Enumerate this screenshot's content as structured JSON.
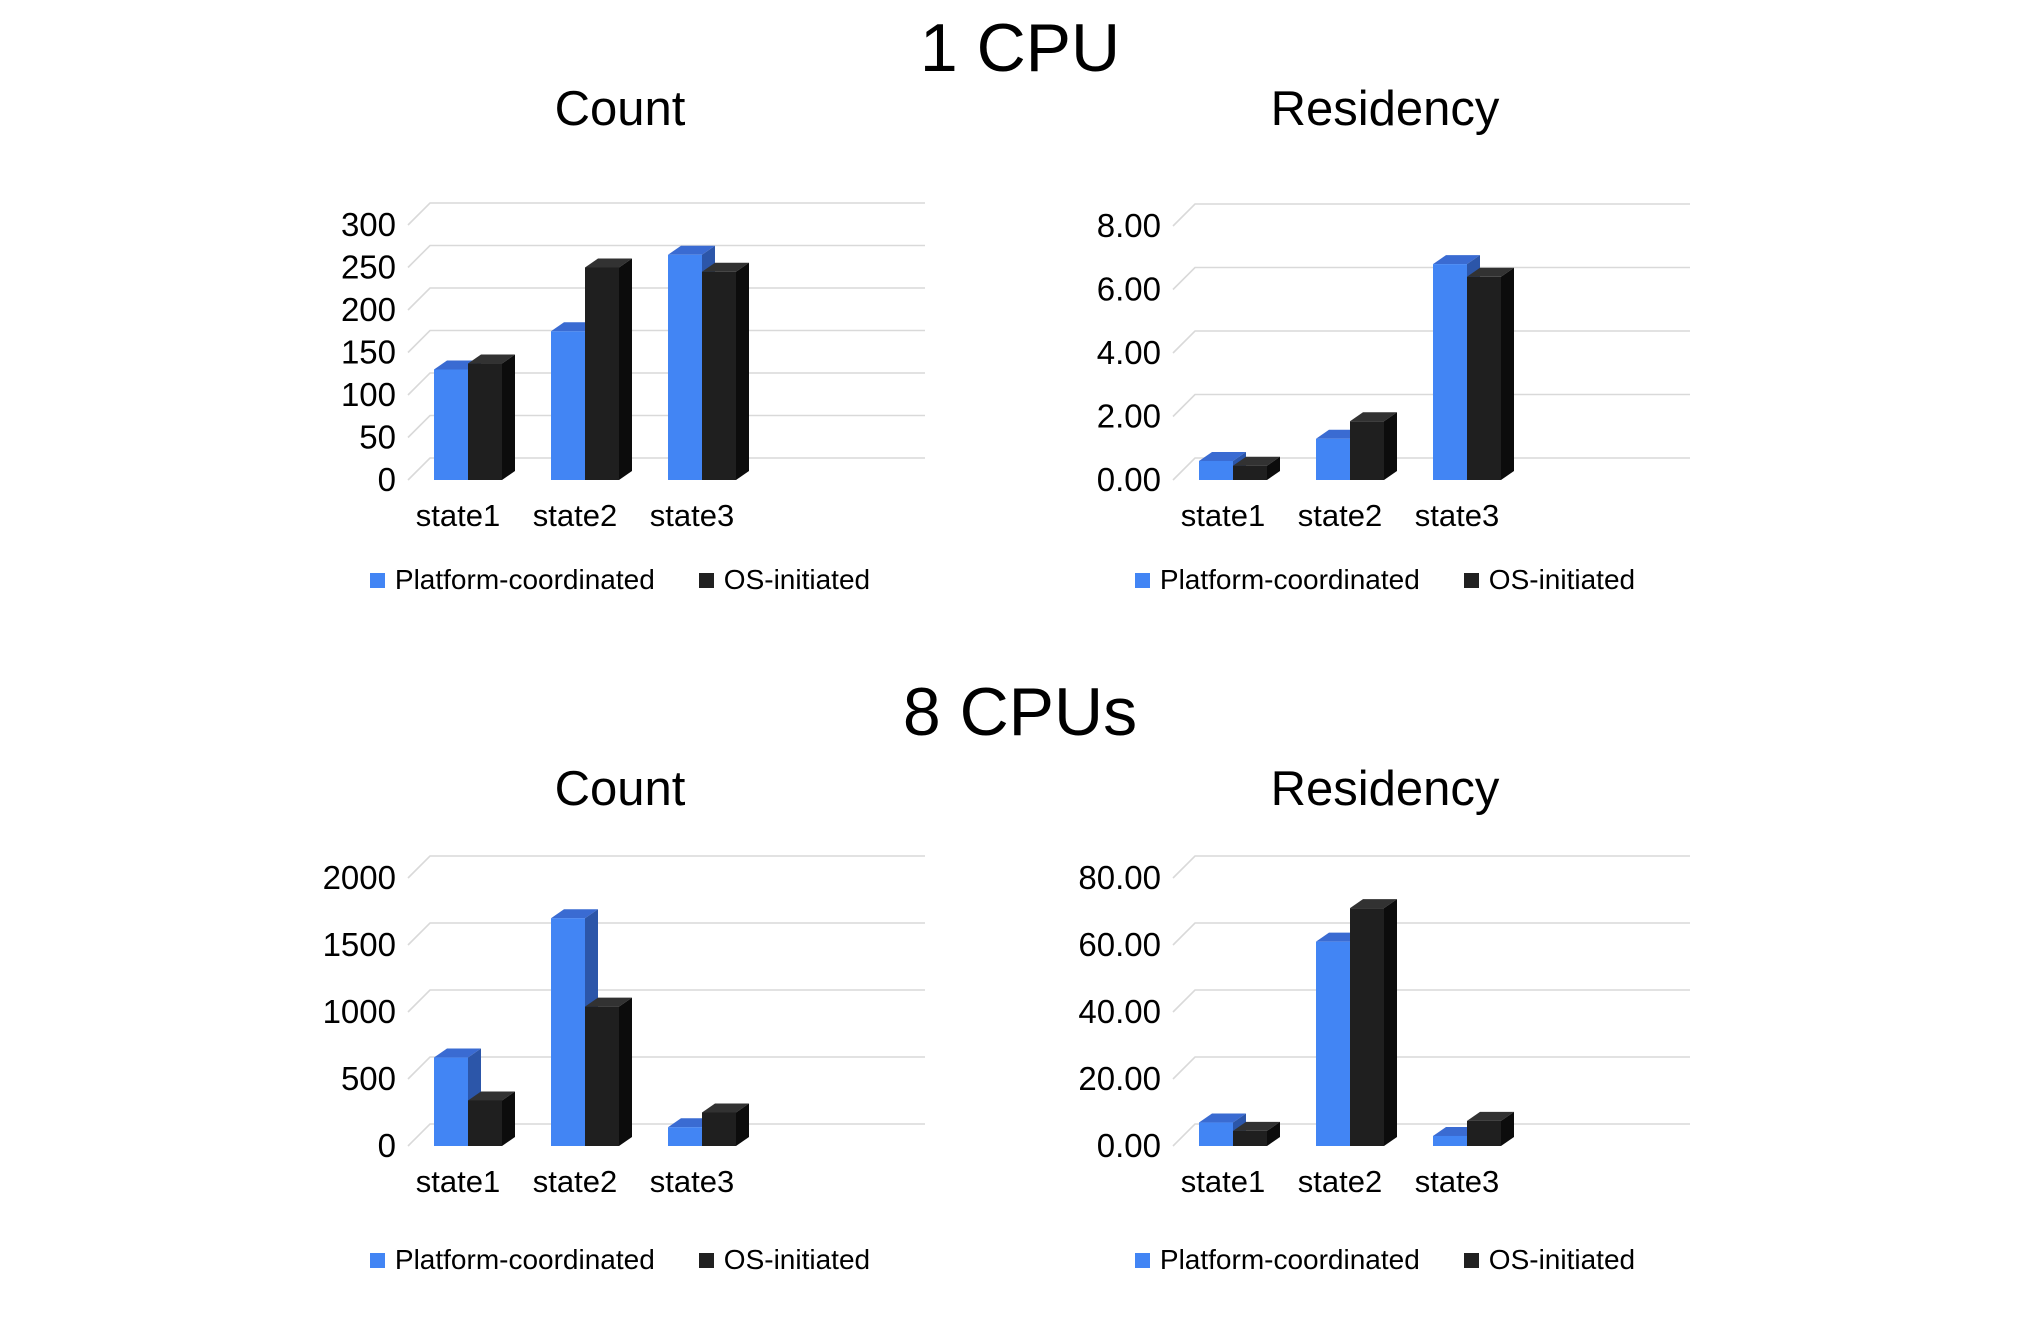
{
  "page_background": "#ffffff",
  "sections": [
    {
      "title": "1 CPU"
    },
    {
      "title": "8 CPUs"
    }
  ],
  "colors": {
    "platform_coordinated": "#4285f4",
    "os_initiated": "#212121",
    "gridline": "#d9d9d9",
    "platform_faces": {
      "front": "#4285f4",
      "top": "#3a6bd2",
      "side": "#2c56a9"
    },
    "os_faces": {
      "front": "#1f1f1f",
      "top": "#323232",
      "side": "#0c0c0c"
    }
  },
  "chart_data": [
    {
      "type": "bar",
      "style": "3d-column",
      "section": "1 CPU",
      "title": "Count",
      "categories": [
        "state1",
        "state2",
        "state3"
      ],
      "series": [
        {
          "name": "Platform-coordinated",
          "color": "#4285f4",
          "values": [
            130,
            175,
            265
          ]
        },
        {
          "name": "OS-initiated",
          "color": "#212121",
          "values": [
            137,
            250,
            245
          ]
        }
      ],
      "ylim": [
        0,
        300
      ],
      "yticks": [
        "0",
        "50",
        "100",
        "150",
        "200",
        "250",
        "300"
      ],
      "grid": true,
      "legend_position": "bottom"
    },
    {
      "type": "bar",
      "style": "3d-column",
      "section": "1 CPU",
      "title": "Residency",
      "categories": [
        "state1",
        "state2",
        "state3"
      ],
      "series": [
        {
          "name": "Platform-coordinated",
          "color": "#4285f4",
          "values": [
            0.6,
            1.3,
            6.8
          ]
        },
        {
          "name": "OS-initiated",
          "color": "#212121",
          "values": [
            0.45,
            1.85,
            6.4
          ]
        }
      ],
      "ylim": [
        0,
        8
      ],
      "yticks": [
        "0.00",
        "2.00",
        "4.00",
        "6.00",
        "8.00"
      ],
      "grid": true,
      "legend_position": "bottom"
    },
    {
      "type": "bar",
      "style": "3d-column",
      "section": "8 CPUs",
      "title": "Count",
      "categories": [
        "state1",
        "state2",
        "state3"
      ],
      "series": [
        {
          "name": "Platform-coordinated",
          "color": "#4285f4",
          "values": [
            660,
            1700,
            140
          ]
        },
        {
          "name": "OS-initiated",
          "color": "#212121",
          "values": [
            340,
            1040,
            250
          ]
        }
      ],
      "ylim": [
        0,
        2000
      ],
      "yticks": [
        "0",
        "500",
        "1000",
        "1500",
        "2000"
      ],
      "grid": true,
      "legend_position": "bottom"
    },
    {
      "type": "bar",
      "style": "3d-column",
      "section": "8 CPUs",
      "title": "Residency",
      "categories": [
        "state1",
        "state2",
        "state3"
      ],
      "series": [
        {
          "name": "Platform-coordinated",
          "color": "#4285f4",
          "values": [
            7,
            61,
            3
          ]
        },
        {
          "name": "OS-initiated",
          "color": "#212121",
          "values": [
            4.5,
            71,
            7.5
          ]
        }
      ],
      "ylim": [
        0,
        80
      ],
      "yticks": [
        "0.00",
        "20.00",
        "40.00",
        "60.00",
        "80.00"
      ],
      "grid": true,
      "legend_position": "bottom"
    }
  ]
}
